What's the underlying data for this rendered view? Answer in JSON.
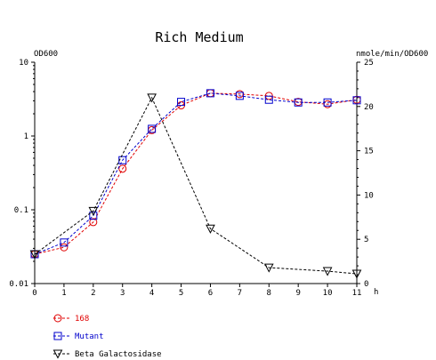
{
  "chart_data": {
    "type": "line",
    "title": "Rich Medium",
    "ylabel_left": "OD600",
    "ylabel_right": "nmole/min/OD600",
    "xlabel": "h",
    "x": [
      0,
      1,
      2,
      3,
      4,
      5,
      6,
      7,
      8,
      9,
      10,
      11
    ],
    "x_ticks": [
      "0",
      "1",
      "2",
      "3",
      "4",
      "5",
      "6",
      "7",
      "8",
      "9",
      "10",
      "11"
    ],
    "y_left_scale": "log",
    "y_left_range": [
      0.01,
      10
    ],
    "y_left_ticks": [
      "0.01",
      "0.1",
      "1",
      "10"
    ],
    "y_right_range": [
      0,
      25
    ],
    "y_right_ticks": [
      "0",
      "5",
      "10",
      "15",
      "20",
      "25"
    ],
    "grid": false,
    "legend_position": "bottom-left",
    "series": [
      {
        "name": "168",
        "axis": "left",
        "marker": "circle",
        "color": "#e00000",
        "values": [
          0.025,
          0.031,
          0.068,
          0.36,
          1.2,
          2.6,
          3.8,
          3.7,
          3.5,
          2.9,
          2.7,
          3.1
        ]
      },
      {
        "name": "Mutant",
        "axis": "left",
        "marker": "square",
        "color": "#0000cc",
        "values": [
          0.025,
          0.036,
          0.083,
          0.47,
          1.25,
          2.9,
          3.8,
          3.5,
          3.1,
          2.85,
          2.85,
          3.05
        ]
      },
      {
        "name": "Beta Galactosidase",
        "axis": "right",
        "marker": "triangle-down",
        "color": "#000000",
        "x": [
          0,
          2,
          4,
          6,
          8,
          10,
          11
        ],
        "values": [
          3.3,
          8.2,
          21.0,
          6.2,
          1.8,
          1.4,
          1.1
        ]
      }
    ]
  }
}
